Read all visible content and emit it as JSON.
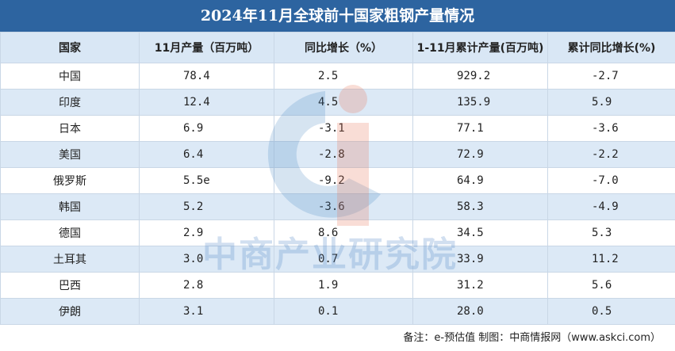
{
  "title": "2024年11月全球前十国家粗钢产量情况",
  "table": {
    "header": [
      "国家",
      "11月产量（百万吨）",
      "同比增长（%）",
      "1-11月累计产量(百万吨)",
      "累计同比增长(%)"
    ],
    "rows": [
      [
        "中国",
        "78.4",
        "2.5",
        "929.2",
        "-2.7"
      ],
      [
        "印度",
        "12.4",
        "4.5",
        "135.9",
        "5.9"
      ],
      [
        "日本",
        "6.9",
        "-3.1",
        "77.1",
        "-3.6"
      ],
      [
        "美国",
        "6.4",
        "-2.8",
        "72.9",
        "-2.2"
      ],
      [
        "俄罗斯",
        "5.5e",
        "-9.2",
        "64.9",
        "-7.0"
      ],
      [
        "韩国",
        "5.2",
        "-3.6",
        "58.3",
        "-4.9"
      ],
      [
        "德国",
        "2.9",
        "8.6",
        "34.5",
        "5.3"
      ],
      [
        "土耳其",
        "3.0",
        "0.7",
        "33.9",
        "11.2"
      ],
      [
        "巴西",
        "2.8",
        "1.9",
        "31.2",
        "5.6"
      ],
      [
        "伊朗",
        "3.1",
        "0.1",
        "28.0",
        "0.5"
      ]
    ]
  },
  "watermark": "中商产业研究院",
  "footer": "备注：e-预估值 制图：中商情报网（www.askci.com）"
}
